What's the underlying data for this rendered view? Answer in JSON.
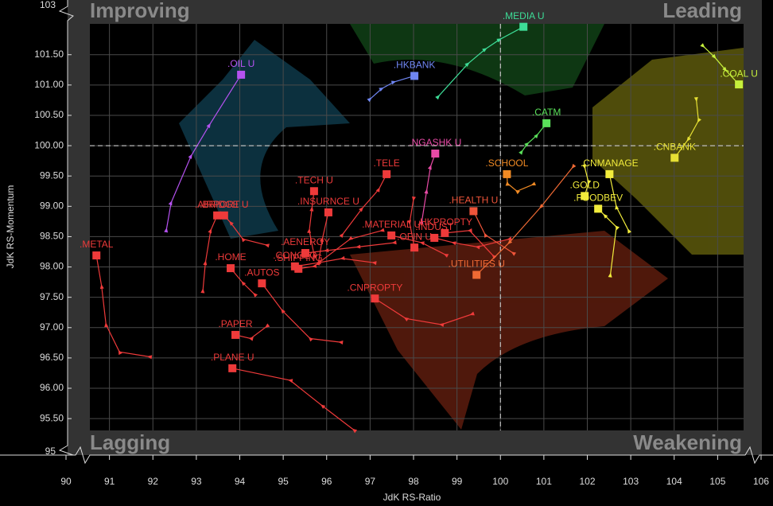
{
  "chart_data": {
    "type": "rrg",
    "x_label": "JdK RS-Ratio",
    "y_label": "JdK RS-Momentum",
    "quadrants": {
      "top_left": "Improving",
      "top_right": "Leading",
      "bottom_left": "Lagging",
      "bottom_right": "Weakening"
    },
    "xlim": [
      90,
      106
    ],
    "ylim": [
      95.2,
      102.1
    ],
    "ybreaks": [
      95,
      103
    ],
    "reference": [
      100,
      100
    ],
    "xticks": [
      90,
      91,
      92,
      93,
      94,
      95,
      96,
      97,
      98,
      99,
      100,
      101,
      102,
      103,
      104,
      105,
      106
    ],
    "yticks": [
      {
        "value": 95.5,
        "label": "95.50"
      },
      {
        "value": 96,
        "label": "96.00"
      },
      {
        "value": 96.5,
        "label": "96.50"
      },
      {
        "value": 97,
        "label": "97.00"
      },
      {
        "value": 97.5,
        "label": "97.50"
      },
      {
        "value": 98,
        "label": "98.00"
      },
      {
        "value": 98.5,
        "label": "98.50"
      },
      {
        "value": 99,
        "label": "99.00"
      },
      {
        "value": 99.5,
        "label": "99.50"
      },
      {
        "value": 100,
        "label": "100.00"
      },
      {
        "value": 100.5,
        "label": "100.50"
      },
      {
        "value": 101,
        "label": "101.00"
      },
      {
        "value": 101.5,
        "label": "101.50"
      }
    ],
    "grid": true,
    "series": [
      {
        "name": ".MEDIA U",
        "color": "#3ddc97",
        "x": [
          98.57,
          99.25,
          99.65,
          99.98,
          100.53
        ],
        "y": [
          100.81,
          101.35,
          101.59,
          101.75,
          101.96
        ]
      },
      {
        "name": ".HKBANK",
        "color": "#6f86f2",
        "x": [
          97.0,
          97.27,
          97.55,
          98.02
        ],
        "y": [
          100.77,
          100.94,
          101.05,
          101.15
        ]
      },
      {
        "name": ".OIL U",
        "color": "#b552f0",
        "x": [
          92.31,
          92.42,
          92.88,
          93.3,
          94.03
        ],
        "y": [
          98.61,
          99.06,
          99.83,
          100.34,
          101.17
        ]
      },
      {
        "name": ".COAL U",
        "color": "#c6f03c",
        "x": [
          104.67,
          104.93,
          105.18,
          105.49
        ],
        "y": [
          101.64,
          101.46,
          101.25,
          101.01
        ]
      },
      {
        "name": ".CATM",
        "color": "#5ae05a",
        "x": [
          100.49,
          100.62,
          100.84,
          101.06
        ],
        "y": [
          99.9,
          100.03,
          100.17,
          100.37
        ]
      },
      {
        "name": ".CNBANK",
        "color": "#e6e034",
        "x": [
          104.51,
          104.56,
          104.32,
          104.01
        ],
        "y": [
          100.76,
          100.41,
          100.1,
          99.8
        ]
      },
      {
        "name": ".NGASHK U",
        "color": "#e84aa6",
        "x": [
          98.19,
          98.3,
          98.39,
          98.5
        ],
        "y": [
          98.75,
          99.25,
          99.65,
          99.87
        ]
      },
      {
        "name": ".TELE",
        "color": "#ee3a3a",
        "x": [
          96.36,
          96.81,
          97.2,
          97.38
        ],
        "y": [
          98.53,
          98.96,
          99.28,
          99.53
        ]
      },
      {
        "name": ".SCHOOL",
        "color": "#f08a24",
        "x": [
          100.75,
          100.38,
          100.16,
          100.15
        ],
        "y": [
          99.36,
          99.25,
          99.38,
          99.53
        ]
      },
      {
        "name": ".TECH U",
        "color": "#ee3a3a",
        "x": [
          95.71,
          95.6,
          95.66,
          95.71
        ],
        "y": [
          98.2,
          98.6,
          98.96,
          99.25
        ]
      },
      {
        "name": ".INSURNCE U",
        "color": "#ee3a3a",
        "x": [
          95.81,
          95.9,
          96.04
        ],
        "y": [
          98.07,
          98.46,
          98.9
        ]
      },
      {
        "name": ".AIRPORT",
        "color": "#ee3a3a",
        "x": [
          93.15,
          93.21,
          93.33,
          93.48
        ],
        "y": [
          97.61,
          98.07,
          98.6,
          98.85
        ]
      },
      {
        "name": ".BRIDGE U",
        "color": "#ee3a3a",
        "x": [
          94.62,
          94.07,
          93.79,
          93.64
        ],
        "y": [
          98.36,
          98.46,
          98.73,
          98.85
        ]
      },
      {
        "name": ".METAL",
        "color": "#ee3a3a",
        "x": [
          91.92,
          91.23,
          90.92,
          90.82,
          90.7
        ],
        "y": [
          96.52,
          96.6,
          97.05,
          97.68,
          98.19
        ]
      },
      {
        "name": ".HOME",
        "color": "#ee3a3a",
        "x": [
          94.34,
          94.07,
          93.79
        ],
        "y": [
          97.55,
          97.74,
          97.98
        ]
      },
      {
        "name": ".AUTOS",
        "color": "#ee3a3a",
        "x": [
          96.32,
          95.62,
          94.98,
          94.51
        ],
        "y": [
          96.76,
          96.82,
          97.28,
          97.73
        ]
      },
      {
        "name": ".AENERGY",
        "color": "#ee3a3a",
        "x": [
          97.55,
          96.72,
          95.99,
          95.51
        ],
        "y": [
          98.4,
          98.33,
          98.27,
          98.23
        ]
      },
      {
        "name": ".CONGLO",
        "color": "#ee3a3a",
        "x": [
          97.09,
          96.36,
          95.81,
          95.27
        ],
        "y": [
          98.07,
          98.14,
          98.07,
          98.01
        ]
      },
      {
        "name": ".SHIPPING",
        "color": "#ee3a3a",
        "x": [
          97.27,
          96.54,
          95.71,
          95.35
        ],
        "y": [
          98.6,
          98.46,
          98.01,
          97.97
        ]
      },
      {
        "name": ".MATERIAL U",
        "color": "#ee3a3a",
        "x": [
          98.74,
          98.19,
          97.49
        ],
        "y": [
          98.2,
          98.4,
          98.52
        ]
      },
      {
        "name": ".INDUST",
        "color": "#ee3a3a",
        "x": [
          100.2,
          99.47,
          98.92,
          98.48
        ],
        "y": [
          98.46,
          98.33,
          98.4,
          98.48
        ]
      },
      {
        "name": ".HKPROPTY",
        "color": "#ee3a3a",
        "x": [
          99.84,
          99.29,
          98.72
        ],
        "y": [
          98.18,
          98.6,
          98.56
        ]
      },
      {
        "name": ".OFIN U",
        "color": "#ee3a3a",
        "x": [
          98.0,
          97.91,
          98.02
        ],
        "y": [
          99.12,
          98.73,
          98.32
        ]
      },
      {
        "name": ".HEALTH U",
        "color": "#f0553a",
        "x": [
          100.29,
          99.65,
          99.38
        ],
        "y": [
          98.23,
          98.53,
          98.92
        ]
      },
      {
        "name": ".CNPROPTY",
        "color": "#ee3a3a",
        "x": [
          99.34,
          98.64,
          97.82,
          97.11
        ],
        "y": [
          97.22,
          97.05,
          97.15,
          97.48
        ]
      },
      {
        "name": ".UTILITIES U",
        "color": "#f06a34",
        "x": [
          101.67,
          100.93,
          100.2,
          99.45
        ],
        "y": [
          99.65,
          98.99,
          98.4,
          97.87
        ]
      },
      {
        "name": ".PAPER",
        "color": "#ee3a3a",
        "x": [
          94.62,
          94.25,
          93.9
        ],
        "y": [
          97.02,
          96.82,
          96.88
        ]
      },
      {
        "name": ".PLANE U",
        "color": "#ee3a3a",
        "x": [
          96.63,
          95.9,
          95.16,
          93.83
        ],
        "y": [
          95.31,
          95.71,
          96.13,
          96.33
        ]
      },
      {
        "name": ".GOLD",
        "color": "#f2ec3c",
        "x": [
          101.94,
          102.03,
          101.94
        ],
        "y": [
          99.65,
          99.39,
          99.17
        ]
      },
      {
        "name": ".CNMANAGE",
        "color": "#f2ec3c",
        "x": [
          102.95,
          102.67,
          102.51
        ],
        "y": [
          98.6,
          98.99,
          99.53
        ]
      },
      {
        "name": ".FOODBEV",
        "color": "#f2ec3c",
        "x": [
          102.53,
          102.67,
          102.4,
          102.25
        ],
        "y": [
          97.87,
          98.66,
          98.85,
          98.96
        ]
      }
    ]
  }
}
